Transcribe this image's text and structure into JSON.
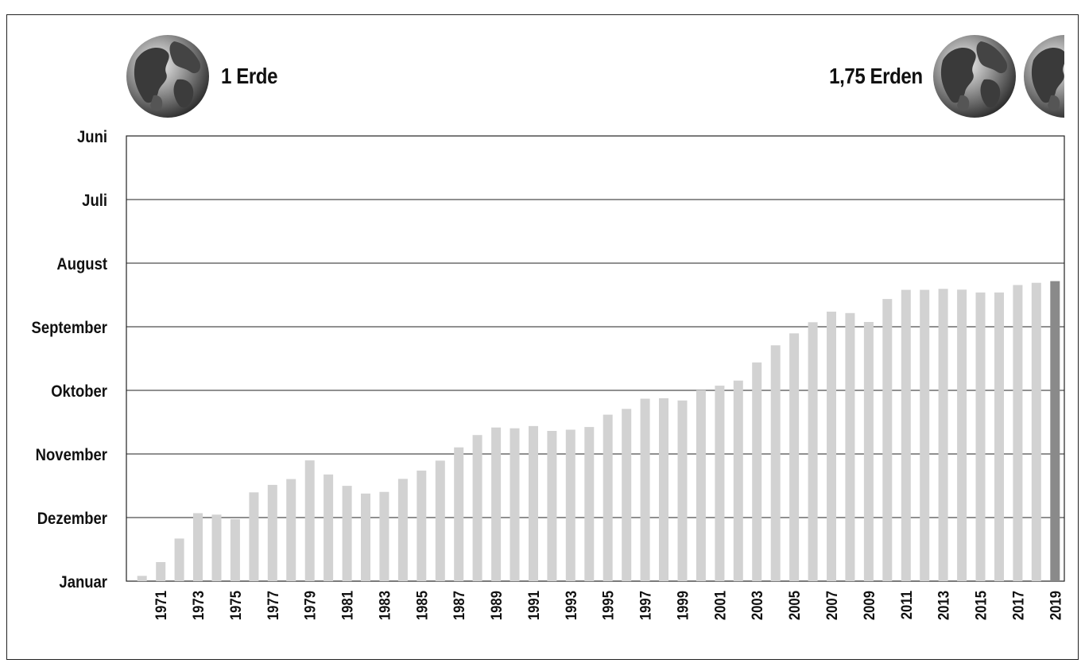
{
  "header": {
    "left_label": "1 Erde",
    "right_label": "1,75 Erden",
    "left_icon": "earth-globe-icon",
    "right_icon": "earth-globe-icon"
  },
  "colors": {
    "bar": "#d2d2d2",
    "highlight_bar": "#8a8a8a",
    "grid": "#222222",
    "text": "#111111"
  },
  "chart_data": {
    "type": "bar",
    "title": "",
    "xlabel": "",
    "ylabel": "",
    "y_axis_note": "month of the year (inverted: Januar at bottom, Juni at top); values are day-of-year offsets measured from 31 December downward",
    "y_ticks": [
      "Januar",
      "Dezember",
      "November",
      "Oktober",
      "September",
      "August",
      "Juli",
      "Juni"
    ],
    "x_tick_labels": [
      "1971",
      "1973",
      "1975",
      "1977",
      "1979",
      "1981",
      "1983",
      "1985",
      "1987",
      "1989",
      "1991",
      "1993",
      "1995",
      "1997",
      "1999",
      "2001",
      "2003",
      "2005",
      "2007",
      "2009",
      "2011",
      "2013",
      "2015",
      "2017",
      "2019"
    ],
    "categories": [
      "1970",
      "1971",
      "1972",
      "1973",
      "1974",
      "1975",
      "1976",
      "1977",
      "1978",
      "1979",
      "1980",
      "1981",
      "1982",
      "1983",
      "1984",
      "1985",
      "1986",
      "1987",
      "1988",
      "1989",
      "1990",
      "1991",
      "1992",
      "1993",
      "1994",
      "1995",
      "1996",
      "1997",
      "1998",
      "1999",
      "2000",
      "2001",
      "2002",
      "2003",
      "2004",
      "2005",
      "2006",
      "2007",
      "2008",
      "2009",
      "2010",
      "2011",
      "2012",
      "2013",
      "2014",
      "2015",
      "2016",
      "2017",
      "2018",
      "2019"
    ],
    "values": [
      2.2,
      7.9,
      17.6,
      28.1,
      27.5,
      25.6,
      36.7,
      39.8,
      42.2,
      49.9,
      44.1,
      39.4,
      36.2,
      36.9,
      42.3,
      45.7,
      49.8,
      55.3,
      60.4,
      63.5,
      63.2,
      64.1,
      62.1,
      62.6,
      63.7,
      68.8,
      71.2,
      75.4,
      75.6,
      74.7,
      78.9,
      80.8,
      82.9,
      90.4,
      97.5,
      102.4,
      107.0,
      111.4,
      110.8,
      107.1,
      116.6,
      120.4,
      120.4,
      120.8,
      120.5,
      119.3,
      119.3,
      122.4,
      123.3,
      124.0
    ],
    "highlight": "2019",
    "ylim": [
      0,
      184
    ],
    "grid": true,
    "legend": "none"
  }
}
